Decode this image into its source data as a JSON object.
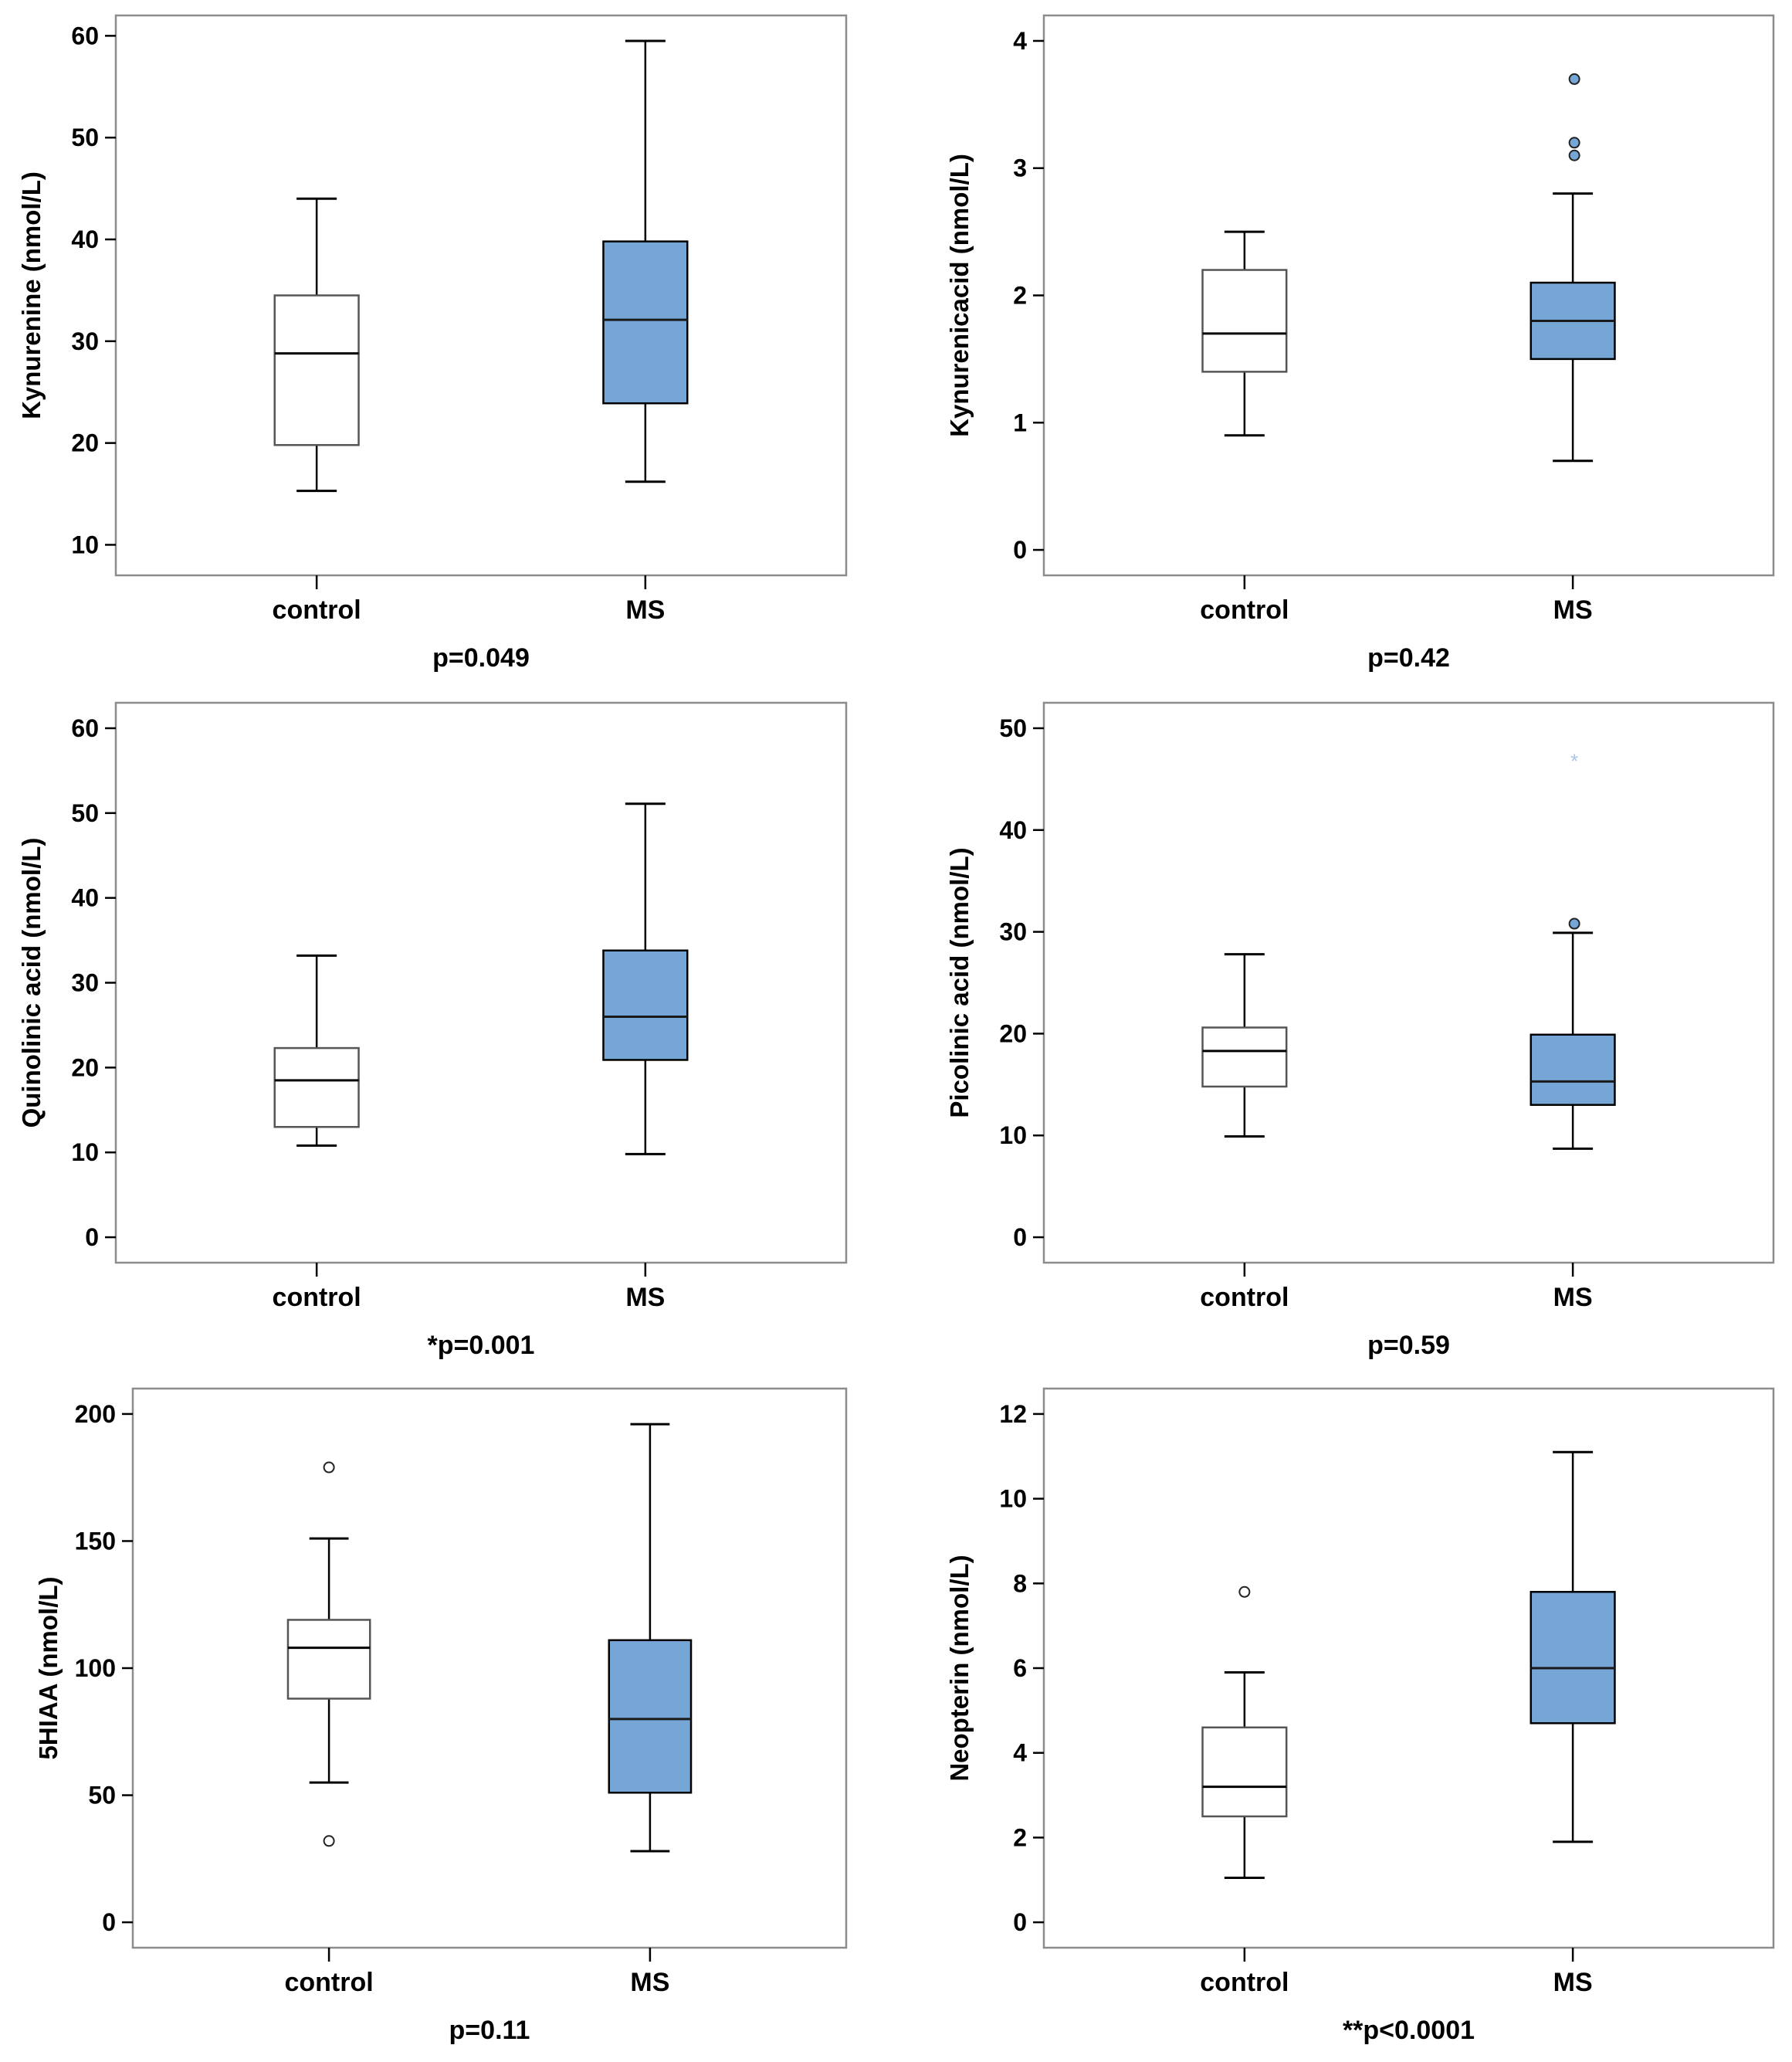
{
  "colors": {
    "ms_fill": "#75A6D6",
    "control_fill": "#FFFFFF",
    "frame": "#8C8C8C",
    "line": "#000000",
    "control_outlier": "#FFFFFF",
    "ms_outlier": "#75A6D6",
    "extreme_star": "#A9C7E8"
  },
  "chart_data": [
    {
      "type": "box",
      "ylabel": "Kynurenine (nmol/L)",
      "p_value": "p=0.049",
      "categories": [
        "control",
        "MS"
      ],
      "ylim": [
        7,
        62
      ],
      "yticks": [
        10,
        20,
        30,
        40,
        50,
        60
      ],
      "tick_labels": [
        "10",
        "20",
        "30",
        "40",
        "50",
        "60"
      ],
      "boxes": [
        {
          "group": "control",
          "min": 15.3,
          "q1": 19.8,
          "median": 28.8,
          "q3": 34.5,
          "max": 44.0,
          "outliers": [],
          "extremes": []
        },
        {
          "group": "MS",
          "min": 16.2,
          "q1": 23.9,
          "median": 32.1,
          "q3": 39.8,
          "max": 59.5,
          "outliers": [],
          "extremes": []
        }
      ]
    },
    {
      "type": "box",
      "ylabel": "Kynurenicacid (nmol/L)",
      "p_value": "p=0.42",
      "categories": [
        "control",
        "MS"
      ],
      "ylim": [
        -0.2,
        4.2
      ],
      "yticks": [
        0,
        1,
        2,
        3,
        4
      ],
      "tick_labels": [
        "0",
        "1",
        "2",
        "3",
        "4"
      ],
      "boxes": [
        {
          "group": "control",
          "min": 0.9,
          "q1": 1.4,
          "median": 1.7,
          "q3": 2.2,
          "max": 2.5,
          "outliers": [],
          "extremes": []
        },
        {
          "group": "MS",
          "min": 0.7,
          "q1": 1.5,
          "median": 1.8,
          "q3": 2.1,
          "max": 2.8,
          "outliers": [
            3.1,
            3.2,
            3.7
          ],
          "extremes": []
        }
      ]
    },
    {
      "type": "box",
      "ylabel": "Quinolinic acid (nmol/L)",
      "p_value": "*p=0.001",
      "categories": [
        "control",
        "MS"
      ],
      "ylim": [
        -3,
        63
      ],
      "yticks": [
        0,
        10,
        20,
        30,
        40,
        50,
        60
      ],
      "tick_labels": [
        "0",
        "10",
        "20",
        "30",
        "40",
        "50",
        "60"
      ],
      "boxes": [
        {
          "group": "control",
          "min": 10.8,
          "q1": 13.0,
          "median": 18.5,
          "q3": 22.3,
          "max": 33.2,
          "outliers": [],
          "extremes": []
        },
        {
          "group": "MS",
          "min": 9.8,
          "q1": 20.9,
          "median": 26.0,
          "q3": 33.8,
          "max": 51.1,
          "outliers": [],
          "extremes": []
        }
      ]
    },
    {
      "type": "box",
      "ylabel": "Picolinic acid (nmol/L)",
      "p_value": "p=0.59",
      "categories": [
        "control",
        "MS"
      ],
      "ylim": [
        -2.5,
        52.5
      ],
      "yticks": [
        0,
        10,
        20,
        30,
        40,
        50
      ],
      "tick_labels": [
        "0",
        "10",
        "20",
        "30",
        "40",
        "50"
      ],
      "boxes": [
        {
          "group": "control",
          "min": 9.9,
          "q1": 14.8,
          "median": 18.3,
          "q3": 20.6,
          "max": 27.8,
          "outliers": [],
          "extremes": []
        },
        {
          "group": "MS",
          "min": 8.7,
          "q1": 13.0,
          "median": 15.3,
          "q3": 19.9,
          "max": 29.9,
          "outliers": [
            30.8
          ],
          "extremes": [
            47.0
          ]
        }
      ]
    },
    {
      "type": "box",
      "ylabel": "5HIAA (nmol/L)",
      "p_value": "p=0.11",
      "categories": [
        "control",
        "MS"
      ],
      "ylim": [
        -10,
        210
      ],
      "yticks": [
        0,
        50,
        100,
        150,
        200
      ],
      "tick_labels": [
        "0",
        "50",
        "100",
        "150",
        "200"
      ],
      "boxes": [
        {
          "group": "control",
          "min": 55,
          "q1": 88,
          "median": 108,
          "q3": 119,
          "max": 151,
          "outliers": [
            32,
            179
          ],
          "extremes": []
        },
        {
          "group": "MS",
          "min": 28,
          "q1": 51,
          "median": 80,
          "q3": 111,
          "max": 196,
          "outliers": [],
          "extremes": []
        }
      ]
    },
    {
      "type": "box",
      "ylabel": "Neopterin (nmol/L)",
      "p_value": "**p<0.0001",
      "categories": [
        "control",
        "MS"
      ],
      "ylim": [
        -0.6,
        12.6
      ],
      "yticks": [
        0,
        2,
        4,
        6,
        8,
        10,
        12
      ],
      "tick_labels": [
        "0",
        "2",
        "4",
        "6",
        "8",
        "10",
        "12"
      ],
      "boxes": [
        {
          "group": "control",
          "min": 1.05,
          "q1": 2.5,
          "median": 3.2,
          "q3": 4.6,
          "max": 5.9,
          "outliers": [
            7.8
          ],
          "extremes": []
        },
        {
          "group": "MS",
          "min": 1.9,
          "q1": 4.7,
          "median": 6.0,
          "q3": 7.8,
          "max": 11.1,
          "outliers": [],
          "extremes": []
        }
      ]
    }
  ]
}
